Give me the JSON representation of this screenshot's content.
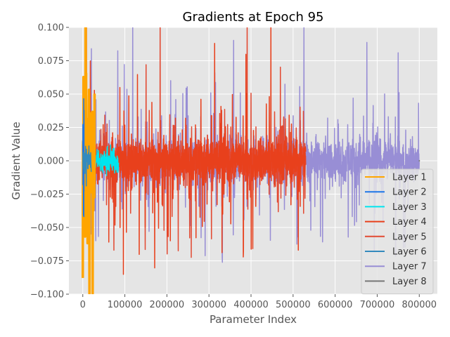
{
  "chart_data": {
    "type": "line",
    "title": "Gradients at Epoch 95",
    "xlabel": "Parameter Index",
    "ylabel": "Gradient Value",
    "xlim": [
      -33000,
      843000
    ],
    "ylim": [
      -0.1,
      0.1
    ],
    "xticks": [
      0,
      100000,
      200000,
      300000,
      400000,
      500000,
      600000,
      700000,
      800000
    ],
    "yticks": [
      -0.1,
      -0.075,
      -0.05,
      -0.025,
      0.0,
      0.025,
      0.05,
      0.075,
      0.1
    ],
    "xtick_labels": [
      "0",
      "100000",
      "200000",
      "300000",
      "400000",
      "500000",
      "600000",
      "700000",
      "800000"
    ],
    "ytick_labels": [
      "−0.100",
      "−0.075",
      "−0.050",
      "−0.025",
      "0.000",
      "0.025",
      "0.050",
      "0.075",
      "0.100"
    ],
    "grid": true,
    "legend_position": "center-right",
    "series": [
      {
        "name": "Layer 1",
        "color": "#FFA500",
        "x_range": [
          0,
          28000
        ],
        "amplitude": 0.2,
        "base_noise": 0.08
      },
      {
        "name": "Layer 2",
        "color": "#1F77E8",
        "x_range": [
          0,
          3000
        ],
        "amplitude": 0.09,
        "base_noise": 0.06
      },
      {
        "name": "Layer 3",
        "color": "#00E5EE",
        "x_range": [
          0,
          85000
        ],
        "amplitude": 0.02,
        "base_noise": 0.012
      },
      {
        "name": "Layer 4",
        "color": "#E8401C",
        "x_range": [
          0,
          530000
        ],
        "amplitude": 0.1,
        "base_noise": 0.02
      },
      {
        "name": "Layer 5",
        "color": "#E24A33",
        "x_range": [
          0,
          530000
        ],
        "amplitude": 0.1,
        "base_noise": 0.02
      },
      {
        "name": "Layer 6",
        "color": "#348ABD",
        "x_range": [
          0,
          20000
        ],
        "amplitude": 0.03,
        "base_noise": 0.015
      },
      {
        "name": "Layer 7",
        "color": "#988ED5",
        "x_range": [
          0,
          800000
        ],
        "amplitude": 0.1,
        "base_noise": 0.022
      },
      {
        "name": "Layer 8",
        "color": "#777777",
        "x_range": [
          800000,
          800500
        ],
        "amplitude": 0.001,
        "base_noise": 0.0005
      }
    ]
  }
}
